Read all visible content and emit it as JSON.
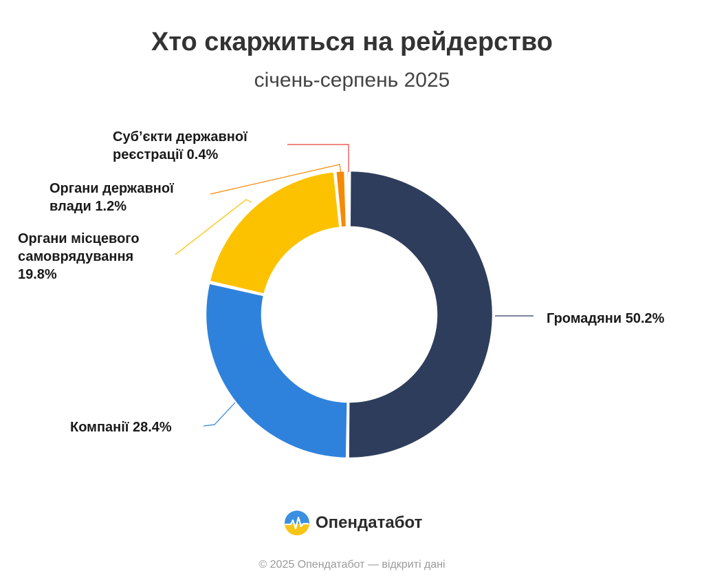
{
  "header": {
    "title": "Хто скаржиться на рейдерство",
    "subtitle": "січень-серпень 2025"
  },
  "chart_data": {
    "type": "pie",
    "donut": true,
    "title": "Хто скаржиться на рейдерство",
    "subtitle": "січень-серпень 2025",
    "slices": [
      {
        "name": "Громадяни",
        "value": 50.2,
        "label_lines": [
          "Громадяни 50.2%"
        ],
        "color": "#2e3d5c"
      },
      {
        "name": "Компанії",
        "value": 28.4,
        "label_lines": [
          "Компанії 28.4%"
        ],
        "color": "#2f82dc"
      },
      {
        "name": "Органи місцевого самоврядування",
        "value": 19.8,
        "label_lines": [
          "Органи місцевого",
          "самоврядування",
          "19.8%"
        ],
        "color": "#fcc200"
      },
      {
        "name": "Органи державної влади",
        "value": 1.2,
        "label_lines": [
          "Органи державної",
          "влади 1.2%"
        ],
        "color": "#f58a07"
      },
      {
        "name": "Суб’єкти державної реєстрації",
        "value": 0.4,
        "label_lines": [
          "Суб’єкти державної",
          "реєстрації 0.4%"
        ],
        "color": "#e8413a"
      }
    ]
  },
  "brand": {
    "name": "Опендатабот",
    "icon": "opendatabot-logo-icon"
  },
  "footer": {
    "text": "© 2025 Опендатабот — відкриті дані"
  }
}
